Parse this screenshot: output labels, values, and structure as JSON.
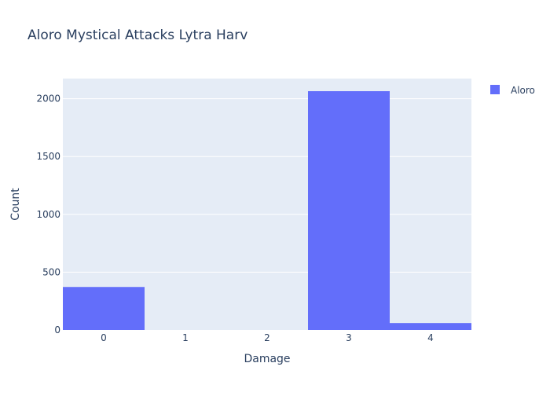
{
  "chart_data": {
    "type": "bar",
    "title": "Aloro Mystical Attacks Lytra Harv",
    "xlabel": "Damage",
    "ylabel": "Count",
    "categories": [
      "0",
      "1",
      "2",
      "3",
      "4"
    ],
    "series": [
      {
        "name": "Aloro",
        "values": [
          372,
          0,
          0,
          2065,
          60
        ]
      }
    ],
    "ylim": [
      0,
      2174
    ],
    "yticks": [
      0,
      500,
      1000,
      1500,
      2000
    ],
    "ytick_labels": [
      "0",
      "500",
      "1000",
      "1500",
      "2000"
    ],
    "grid": true,
    "legend_position": "top-right",
    "bar_gap": 0,
    "colors": {
      "bar": "#636efa",
      "plot_bg": "#e5ecf6",
      "grid": "#ffffff",
      "text": "#2a3f5f",
      "tick_text": "#2a3f5f"
    }
  }
}
